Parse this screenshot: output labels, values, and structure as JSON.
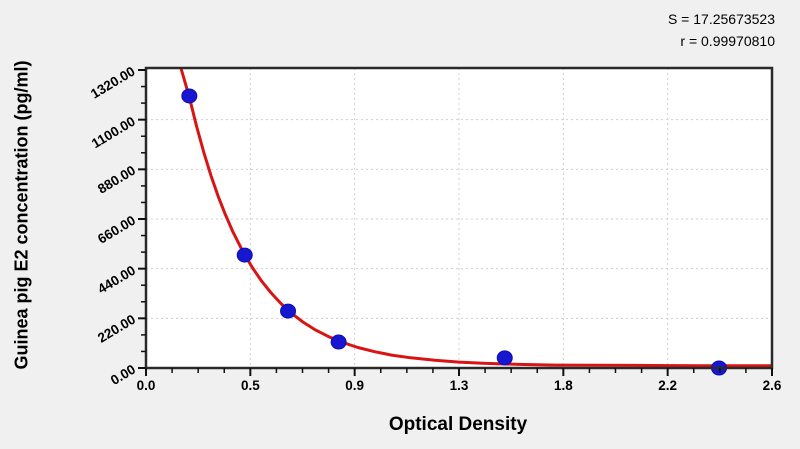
{
  "stats": {
    "s_line": "S = 17.25673523",
    "r_line": "r = 0.99970810"
  },
  "chart_data": {
    "type": "scatter",
    "title": "",
    "xlabel": "Optical Density",
    "ylabel": "Guinea pig E2 concentration (pg/ml)",
    "x_range": [
      0,
      2.6
    ],
    "y_range": [
      0,
      1320
    ],
    "x_tick_labels": [
      "0.0",
      "0.5",
      "0.9",
      "1.3",
      "1.8",
      "2.2",
      "2.6"
    ],
    "y_tick_labels": [
      "0.00",
      "220.00",
      "440.00",
      "660.00",
      "880.00",
      "1100.00",
      "1320.00"
    ],
    "x_minor_divisions": 4,
    "y_minor_divisions": 3,
    "grid": "dashed-on-major-ticks",
    "legend_position": "none",
    "annotations": [
      "S = 17.25673523",
      "r = 0.99970810"
    ],
    "series": [
      {
        "name": "standard-points",
        "type": "scatter",
        "color": "#1717cf",
        "points": [
          [
            0.18,
            1205
          ],
          [
            0.41,
            500
          ],
          [
            0.59,
            252
          ],
          [
            0.8,
            115
          ],
          [
            1.49,
            45
          ],
          [
            2.38,
            0
          ]
        ]
      },
      {
        "name": "fitted-curve",
        "type": "line",
        "color": "#d91414",
        "points": [
          [
            0.145,
            1329
          ],
          [
            0.18,
            1200
          ],
          [
            0.21,
            1070
          ],
          [
            0.24,
            955
          ],
          [
            0.27,
            852
          ],
          [
            0.3,
            760
          ],
          [
            0.33,
            678
          ],
          [
            0.36,
            605
          ],
          [
            0.4,
            521
          ],
          [
            0.44,
            448
          ],
          [
            0.48,
            385
          ],
          [
            0.52,
            332
          ],
          [
            0.56,
            286
          ],
          [
            0.6,
            246
          ],
          [
            0.65,
            205
          ],
          [
            0.7,
            171
          ],
          [
            0.76,
            138
          ],
          [
            0.82,
            112
          ],
          [
            0.88,
            91
          ],
          [
            0.95,
            72
          ],
          [
            1.02,
            57
          ],
          [
            1.1,
            45
          ],
          [
            1.2,
            34
          ],
          [
            1.3,
            26
          ],
          [
            1.4,
            21
          ],
          [
            1.55,
            16
          ],
          [
            1.7,
            13
          ],
          [
            1.9,
            12
          ],
          [
            2.1,
            11
          ],
          [
            2.3,
            10
          ],
          [
            2.6,
            10
          ]
        ]
      }
    ]
  },
  "colors": {
    "background": "#f0f0f0",
    "plot_background": "#ffffff",
    "spine": "#2a2a2a",
    "tick": "#111111",
    "grid": "#cfcfcf",
    "curve": "#d91414",
    "marker_fill": "#1717cf",
    "marker_edge": "#0d0db3",
    "text": "#000000"
  }
}
